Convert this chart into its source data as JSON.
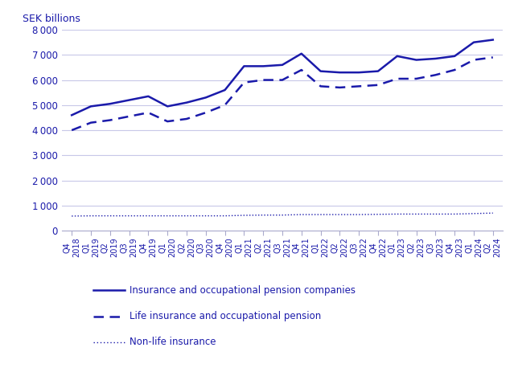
{
  "labels": [
    "Q4\n2018",
    "Q1\n2019",
    "Q2\n2019",
    "Q3\n2019",
    "Q4\n2019",
    "Q1\n2020",
    "Q2\n2020",
    "Q3\n2020",
    "Q4\n2020",
    "Q1\n2021",
    "Q2\n2021",
    "Q3\n2021",
    "Q4\n2021",
    "Q1\n2022",
    "Q2\n2022",
    "Q3\n2022",
    "Q4\n2022",
    "Q1\n2023",
    "Q2\n2023",
    "Q3\n2023",
    "Q4\n2023",
    "Q1\n2024",
    "Q2\n2024"
  ],
  "insurance_total": [
    4600,
    4950,
    5050,
    5200,
    5350,
    4950,
    5100,
    5300,
    5600,
    6550,
    6550,
    6600,
    7050,
    6350,
    6300,
    6300,
    6350,
    6950,
    6800,
    6850,
    6950,
    7500,
    7600
  ],
  "life_insurance": [
    4000,
    4300,
    4400,
    4550,
    4700,
    4350,
    4450,
    4700,
    5000,
    5900,
    6000,
    6000,
    6400,
    5750,
    5700,
    5750,
    5800,
    6050,
    6050,
    6200,
    6400,
    6800,
    6900
  ],
  "non_life": [
    580,
    590,
    590,
    590,
    590,
    590,
    590,
    590,
    590,
    610,
    620,
    620,
    640,
    640,
    640,
    640,
    650,
    660,
    660,
    660,
    660,
    680,
    700
  ],
  "color": "#1a1aaa",
  "ylim": [
    0,
    8000
  ],
  "yticks": [
    0,
    1000,
    2000,
    3000,
    4000,
    5000,
    6000,
    7000,
    8000
  ],
  "ylabel": "SEK billions",
  "legend_labels": [
    "Insurance and occupational pension companies",
    "Life insurance and occupational pension",
    "Non-life insurance"
  ],
  "background_color": "#ffffff",
  "grid_color": "#c8c8e8"
}
